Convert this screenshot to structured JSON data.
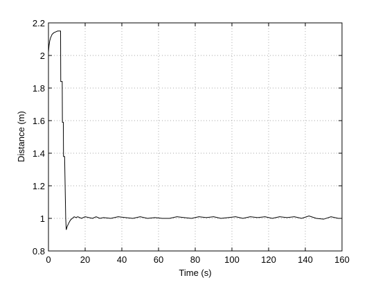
{
  "chart_data": {
    "type": "line",
    "xlabel": "Time (s)",
    "ylabel": "Distance (m)",
    "x": [
      0,
      0.3,
      0.7,
      1.2,
      2,
      3,
      4,
      5,
      6,
      6.6,
      6.7,
      7.5,
      7.6,
      8.1,
      8.2,
      8.8,
      9.4,
      9.7,
      10.2,
      11,
      12,
      13,
      14,
      15,
      16,
      18,
      20,
      22,
      24,
      26,
      28,
      30,
      34,
      38,
      42,
      46,
      50,
      54,
      58,
      62,
      66,
      70,
      74,
      78,
      82,
      86,
      90,
      94,
      98,
      102,
      106,
      110,
      114,
      118,
      122,
      126,
      130,
      134,
      138,
      142,
      146,
      150,
      154,
      158,
      160
    ],
    "series": [
      {
        "color": "#000000",
        "values": [
          2.02,
          2.06,
          2.09,
          2.11,
          2.13,
          2.14,
          2.145,
          2.15,
          2.15,
          2.15,
          1.84,
          1.84,
          1.59,
          1.59,
          1.38,
          1.38,
          1.0,
          0.93,
          0.95,
          0.97,
          0.99,
          1.0,
          1.01,
          1.005,
          1.01,
          1.0,
          1.01,
          1.005,
          1.0,
          1.01,
          1.0,
          1.005,
          1.0,
          1.01,
          1.005,
          1.0,
          1.01,
          1.0,
          1.005,
          1.0,
          1.0,
          1.01,
          1.005,
          1.0,
          1.01,
          1.005,
          1.01,
          1.0,
          1.005,
          1.01,
          1.0,
          1.01,
          1.005,
          1.01,
          1.0,
          1.01,
          1.005,
          1.01,
          1.0,
          1.015,
          1.0,
          0.995,
          1.01,
          1.0,
          1.0
        ]
      }
    ],
    "xlim": [
      0,
      160
    ],
    "xticks": [
      0,
      20,
      40,
      60,
      80,
      100,
      120,
      140,
      160
    ],
    "ylim": [
      0.8,
      2.2
    ],
    "yticks": [
      0.8,
      1,
      1.2,
      1.4,
      1.6,
      1.8,
      2,
      2.2
    ],
    "grid": true
  }
}
